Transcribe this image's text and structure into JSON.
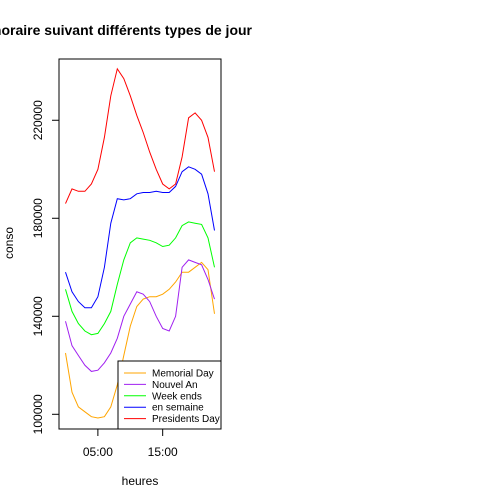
{
  "chart_data": {
    "type": "line",
    "title": "Profil horaire suivant différents types de jour",
    "xlabel": "heures",
    "ylabel": "conso",
    "x": [
      0,
      1,
      2,
      3,
      4,
      5,
      6,
      7,
      8,
      9,
      10,
      11,
      12,
      13,
      14,
      15,
      16,
      17,
      18,
      19,
      20,
      21,
      22,
      23
    ],
    "xlim": [
      -1,
      24
    ],
    "ylim": [
      94000,
      245000
    ],
    "x_ticks": [
      {
        "value": 5,
        "label": "05:00"
      },
      {
        "value": 15,
        "label": "15:00"
      }
    ],
    "y_ticks": [
      {
        "value": 100000,
        "label": "100000"
      },
      {
        "value": 140000,
        "label": "140000"
      },
      {
        "value": 180000,
        "label": "180000"
      },
      {
        "value": 220000,
        "label": "220000"
      }
    ],
    "grid": false,
    "legend_position": "bottom-right",
    "series": [
      {
        "name": "Memorial Day",
        "color": "#FFA500",
        "values": [
          125000,
          109000,
          103000,
          101000,
          99000,
          98500,
          99000,
          103000,
          112000,
          124000,
          136000,
          144000,
          147000,
          148000,
          148000,
          149000,
          151000,
          154000,
          158000,
          158000,
          160000,
          162000,
          159000,
          141000
        ]
      },
      {
        "name": "Nouvel An",
        "color": "#A020F0",
        "values": [
          138000,
          128000,
          124000,
          120000,
          117500,
          118000,
          121000,
          125000,
          131000,
          140000,
          145000,
          150000,
          149000,
          146000,
          140000,
          135000,
          134000,
          140000,
          160000,
          163000,
          162000,
          161000,
          155000,
          147000
        ]
      },
      {
        "name": "Week ends",
        "color": "#00FF00",
        "values": [
          151000,
          142000,
          137000,
          134000,
          132500,
          133000,
          137000,
          142000,
          153000,
          163000,
          170000,
          172000,
          171500,
          171000,
          170000,
          168500,
          169000,
          172000,
          177000,
          178500,
          178000,
          177500,
          172000,
          160000
        ]
      },
      {
        "name": "en semaine",
        "color": "#0000FF",
        "values": [
          158000,
          150000,
          146000,
          143500,
          143500,
          148000,
          160000,
          178000,
          188000,
          187500,
          188000,
          190000,
          190500,
          190500,
          191000,
          190500,
          190500,
          193000,
          199000,
          201000,
          200000,
          198000,
          190000,
          175000
        ]
      },
      {
        "name": "Presidents Day",
        "color": "#FF0000",
        "values": [
          186000,
          192000,
          191000,
          191000,
          194000,
          200000,
          213000,
          230000,
          241000,
          237000,
          230000,
          222000,
          215000,
          207000,
          200000,
          194000,
          192000,
          194000,
          205000,
          221000,
          223000,
          220000,
          213000,
          199000
        ]
      }
    ]
  }
}
